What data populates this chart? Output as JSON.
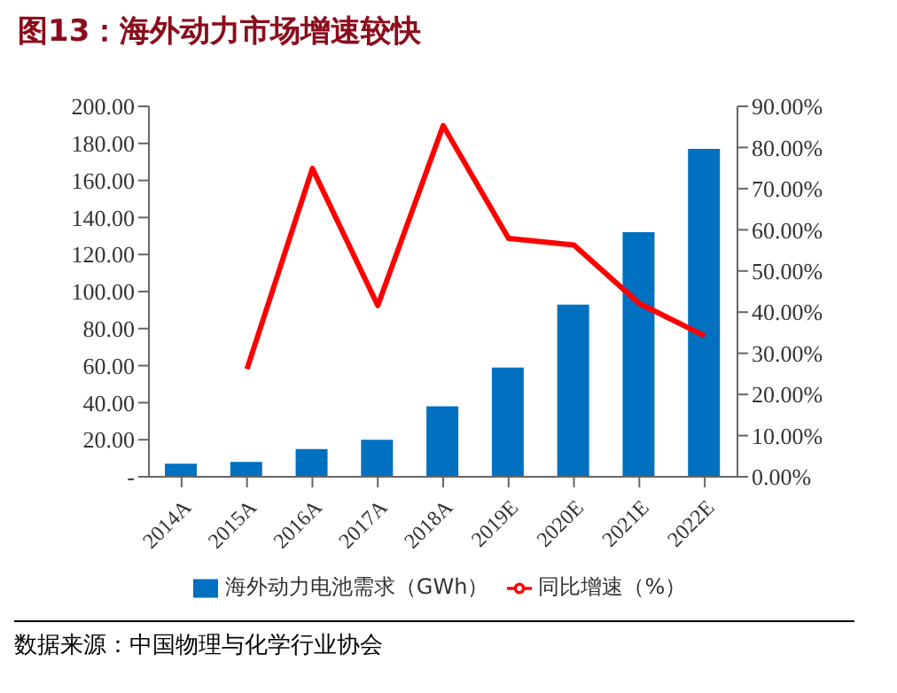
{
  "chart_data": {
    "type": "bar",
    "title": "图13：海外动力市场增速较快",
    "categories": [
      "2014A",
      "2015A",
      "2016A",
      "2017A",
      "2018A",
      "2019E",
      "2020E",
      "2021E",
      "2022E"
    ],
    "series": [
      {
        "name": "海外动力电池需求（GWh）",
        "color": "#0070c0",
        "values": [
          7,
          8,
          15,
          20,
          38,
          59,
          93,
          132,
          177
        ]
      },
      {
        "name": "同比增速（%）",
        "type": "line",
        "axis": "y2",
        "color": "#ff0000",
        "values": [
          null,
          26.2,
          74.9,
          41.6,
          85.3,
          57.9,
          56.3,
          42.1,
          34.2
        ]
      }
    ],
    "ylim": [
      0,
      200
    ],
    "yticks": [
      {
        "value": 0,
        "label": "-"
      },
      {
        "value": 20,
        "label": "20.00"
      },
      {
        "value": 40,
        "label": "40.00"
      },
      {
        "value": 60,
        "label": "60.00"
      },
      {
        "value": 80,
        "label": "80.00"
      },
      {
        "value": 100,
        "label": "100.00"
      },
      {
        "value": 120,
        "label": "120.00"
      },
      {
        "value": 140,
        "label": "140.00"
      },
      {
        "value": 160,
        "label": "160.00"
      },
      {
        "value": 180,
        "label": "180.00"
      },
      {
        "value": 200,
        "label": "200.00"
      }
    ],
    "y2lim": [
      0,
      90
    ],
    "y2ticks": [
      {
        "value": 0,
        "label": "0.00%"
      },
      {
        "value": 10,
        "label": "10.00%"
      },
      {
        "value": 20,
        "label": "20.00%"
      },
      {
        "value": 30,
        "label": "30.00%"
      },
      {
        "value": 40,
        "label": "40.00%"
      },
      {
        "value": 50,
        "label": "50.00%"
      },
      {
        "value": 60,
        "label": "60.00%"
      },
      {
        "value": 70,
        "label": "70.00%"
      },
      {
        "value": 80,
        "label": "80.00%"
      },
      {
        "value": 90,
        "label": "90.00%"
      }
    ],
    "grid": false,
    "legend": "bottom",
    "marker": "none",
    "annotations": [
      "数据来源：中国物理与化学行业协会"
    ]
  }
}
